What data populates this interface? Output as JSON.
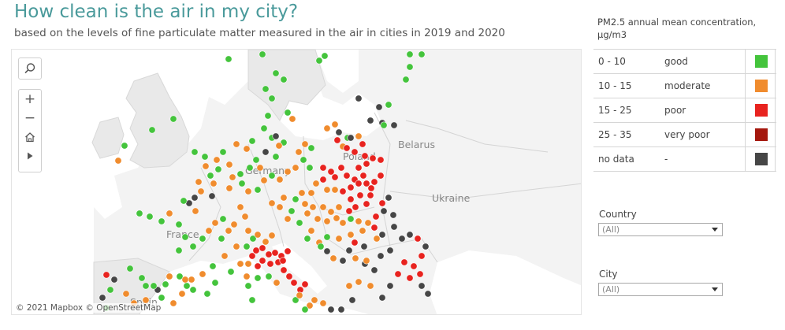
{
  "header": {
    "title": "How clean is the air in my city?",
    "subtitle": "based on the levels of fine particulate matter measured in the air in cities in 2019 and 2020"
  },
  "map": {
    "attribution": "© 2021 Mapbox  © OpenStreetMap",
    "country_labels": {
      "belarus": "Belarus",
      "ukraine": "Ukraine",
      "france": "France",
      "germany": "Germany",
      "poland": "Poland",
      "spain": "Spain"
    },
    "controls": {
      "search_icon": "search-icon",
      "zoom_in": "+",
      "zoom_out": "−",
      "home_icon": "home-icon",
      "play_icon": "play-icon"
    }
  },
  "legend": {
    "title": "PM2.5 annual mean concentration, µg/m3",
    "items": [
      {
        "range": "0 - 10",
        "label": "good",
        "color": "#44c43c"
      },
      {
        "range": "10 - 15",
        "label": "moderate",
        "color": "#f08c2e"
      },
      {
        "range": "15 - 25",
        "label": "poor",
        "color": "#e8231f"
      },
      {
        "range": "25 - 35",
        "label": "very poor",
        "color": "#a5180e"
      },
      {
        "range": "no data",
        "label": "-",
        "color": "#464646"
      }
    ]
  },
  "filters": {
    "country": {
      "label": "Country",
      "value": "(All)"
    },
    "city": {
      "label": "City",
      "value": "(All)"
    }
  }
}
